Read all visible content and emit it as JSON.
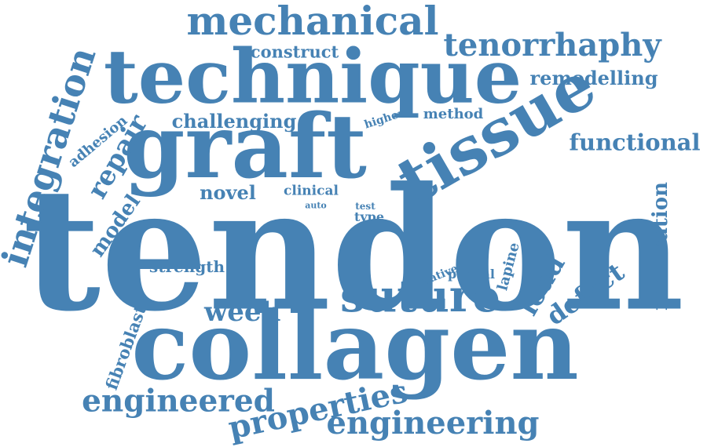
{
  "theme": {
    "word_color": "#4682b4",
    "background": "#ffffff"
  },
  "words": {
    "tendon": "tendon",
    "collagen": "collagen",
    "graft": "graft",
    "technique": "technique",
    "tissue": "tissue",
    "suture": "suture",
    "mechanical": "mechanical",
    "tenorrhaphy": "tenorrhaphy",
    "integration": "integration",
    "engineered": "engineered",
    "engineering": "engineering",
    "properties": "properties",
    "functional": "functional",
    "remodelling": "remodelling",
    "repair": "repair",
    "week": "week",
    "defect": "defect",
    "load": "load",
    "maturation": "maturation",
    "challenging": "challenging",
    "construct": "construct",
    "model": "model",
    "novel": "novel",
    "fibroblast": "fibroblast",
    "strength": "strength",
    "adhesion": "adhesion",
    "method": "method",
    "higher": "higher",
    "clinical": "clinical",
    "auto": "auto",
    "test": "test",
    "type": "type",
    "native": "native",
    "partial": "partial",
    "lapine": "lapine"
  }
}
